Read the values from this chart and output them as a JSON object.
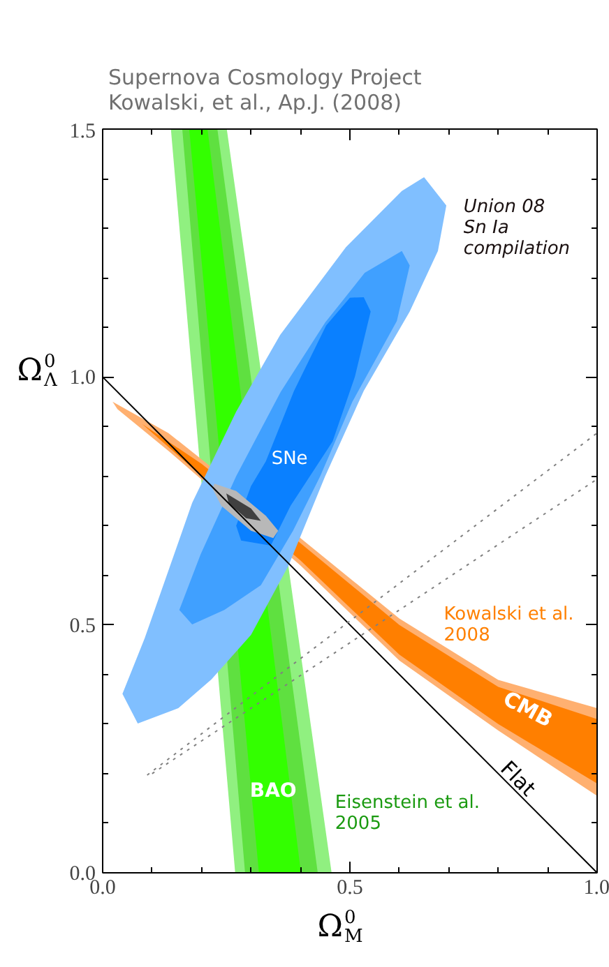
{
  "chart_data": {
    "type": "area",
    "title": "Supernova Cosmology Project\nKowalski, et al., Ap.J. (2008)",
    "xlabel": "Ω$_{M}$$^{0}$",
    "ylabel": "Ω$_{Λ}$$^{0}$",
    "xlim": [
      0.0,
      1.0
    ],
    "ylim": [
      0.0,
      1.5
    ],
    "xticks": [
      "0.0",
      {
        "value": 0.1,
        "label": null
      },
      {
        "value": 0.2,
        "label": null
      },
      {
        "value": 0.3,
        "label": null
      },
      {
        "value": 0.4,
        "label": null
      },
      {
        "value": 0.5,
        "label": "0.5"
      },
      {
        "value": 0.6,
        "label": null
      },
      {
        "value": 0.7,
        "label": null
      },
      {
        "value": 0.8,
        "label": null
      },
      {
        "value": 0.9,
        "label": null
      },
      {
        "value": 1.0,
        "label": "1.0"
      }
    ],
    "yticks": [
      {
        "value": 0.0,
        "label": "0.0"
      },
      {
        "value": 0.1,
        "label": null
      },
      {
        "value": 0.2,
        "label": null
      },
      {
        "value": 0.3,
        "label": null
      },
      {
        "value": 0.4,
        "label": null
      },
      {
        "value": 0.5,
        "label": "0.5"
      },
      {
        "value": 0.6,
        "label": null
      },
      {
        "value": 0.7,
        "label": null
      },
      {
        "value": 0.8,
        "label": null
      },
      {
        "value": 0.9,
        "label": null
      },
      {
        "value": 1.0,
        "label": "1.0"
      },
      {
        "value": 1.1,
        "label": null
      },
      {
        "value": 1.2,
        "label": null
      },
      {
        "value": 1.3,
        "label": null
      },
      {
        "value": 1.4,
        "label": null
      },
      {
        "value": 1.5,
        "label": "1.5"
      }
    ],
    "grid": false,
    "series": [
      {
        "color": "#90f080",
        "x": [
          0.138,
          0.251,
          0.463,
          0.268
        ],
        "values": [
          1.5,
          1.5,
          0.0,
          0.0
        ]
      },
      {
        "color": "#5fe040",
        "x": [
          0.161,
          0.232,
          0.435,
          0.288
        ],
        "values": [
          1.5,
          1.5,
          0.0,
          0.0
        ]
      },
      {
        "color": "#33ff00",
        "x": [
          0.175,
          0.212,
          0.401,
          0.316
        ],
        "values": [
          1.5,
          1.5,
          0.0,
          0.0
        ]
      },
      {
        "color": "#ffb070",
        "x": [
          0.02,
          0.133,
          0.4,
          0.6,
          0.8,
          1.0,
          1.0,
          0.8,
          0.6,
          0.4,
          0.133,
          0.03
        ],
        "values": [
          0.95,
          0.887,
          0.675,
          0.513,
          0.389,
          0.332,
          0.155,
          0.287,
          0.428,
          0.62,
          0.851,
          0.935
        ]
      },
      {
        "color": "#ff7f00",
        "x": [
          0.08,
          0.2,
          0.4,
          0.6,
          0.8,
          1.0,
          1.0,
          0.8,
          0.6,
          0.4,
          0.2
        ],
        "values": [
          0.905,
          0.825,
          0.665,
          0.5,
          0.375,
          0.31,
          0.18,
          0.3,
          0.44,
          0.63,
          0.8
        ]
      },
      {
        "color": "#80bfff",
        "x": [
          0.65,
          0.695,
          0.678,
          0.621,
          0.528,
          0.45,
          0.376,
          0.3,
          0.22,
          0.153,
          0.071,
          0.04,
          0.085,
          0.181,
          0.27,
          0.359,
          0.492,
          0.605
        ],
        "values": [
          1.403,
          1.346,
          1.254,
          1.132,
          0.972,
          0.8,
          0.62,
          0.48,
          0.39,
          0.332,
          0.301,
          0.361,
          0.473,
          0.746,
          0.93,
          1.085,
          1.262,
          1.375
        ]
      },
      {
        "color": "#40a0ff",
        "x": [
          0.605,
          0.621,
          0.595,
          0.505,
          0.44,
          0.385,
          0.32,
          0.246,
          0.181,
          0.155,
          0.198,
          0.27,
          0.36,
          0.45,
          0.53
        ],
        "values": [
          1.254,
          1.225,
          1.113,
          0.95,
          0.8,
          0.69,
          0.58,
          0.53,
          0.501,
          0.53,
          0.642,
          0.8,
          0.97,
          1.11,
          1.21
        ]
      },
      {
        "color": "#0a80ff",
        "x": [
          0.528,
          0.542,
          0.51,
          0.465,
          0.38,
          0.34,
          0.28,
          0.27,
          0.3,
          0.33,
          0.387,
          0.452,
          0.5
        ],
        "values": [
          1.161,
          1.132,
          1.0,
          0.87,
          0.74,
          0.66,
          0.67,
          0.7,
          0.78,
          0.83,
          0.972,
          1.104,
          1.16
        ]
      },
      {
        "color": "#b8b8b8",
        "x": [
          0.222,
          0.226,
          0.27,
          0.33,
          0.355,
          0.345,
          0.3,
          0.24
        ],
        "values": [
          0.775,
          0.785,
          0.77,
          0.72,
          0.69,
          0.675,
          0.69,
          0.74
        ]
      },
      {
        "color": "#404040",
        "x": [
          0.255,
          0.25,
          0.3,
          0.32,
          0.29
        ],
        "values": [
          0.745,
          0.765,
          0.735,
          0.71,
          0.715
        ]
      },
      {
        "type": "line",
        "color": "#000000",
        "line_style": "solid",
        "x": [
          0.0,
          1.0
        ],
        "values": [
          1.0,
          0.0
        ]
      },
      {
        "type": "line",
        "color": "#808080",
        "line_style": "dotted",
        "x": [
          0.09,
          1.0
        ],
        "values": [
          0.197,
          0.887
        ]
      },
      {
        "type": "line",
        "color": "#808080",
        "line_style": "dotted",
        "x": [
          0.1,
          1.0
        ],
        "values": [
          0.2,
          0.794
        ]
      }
    ],
    "annotations": [
      "SNe",
      "Union 08\nSn Ia\ncompilation",
      "Kowalski et al.\n2008",
      "CMB",
      "BAO",
      "Eisenstein et al.\n2005",
      "Flat"
    ]
  }
}
